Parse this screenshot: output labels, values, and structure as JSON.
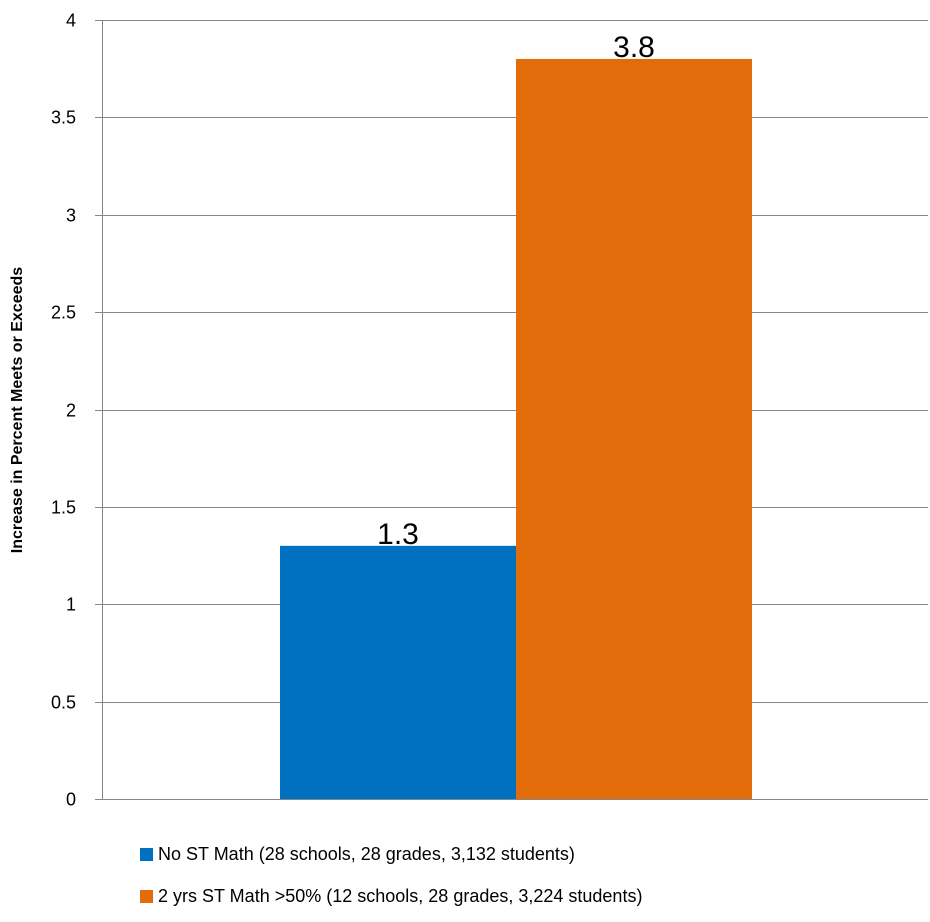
{
  "chart_data": {
    "type": "bar",
    "title": "",
    "xlabel": "",
    "ylabel": "Increase in Percent Meets or Exceeds",
    "ylim": [
      0,
      4
    ],
    "yticks": [
      "0",
      "0.5",
      "1",
      "1.5",
      "2",
      "2.5",
      "3",
      "3.5",
      "4"
    ],
    "grid": true,
    "legend_position": "bottom",
    "series": [
      {
        "name": "No ST Math (28 schools, 28 grades, 3,132 students)",
        "value": 1.3,
        "label": "1.3",
        "color": "#0070C0"
      },
      {
        "name": "2 yrs ST Math >50% (12 schools, 28 grades, 3,224 students)",
        "value": 3.8,
        "label": "3.8",
        "color": "#E36C0A"
      }
    ]
  }
}
